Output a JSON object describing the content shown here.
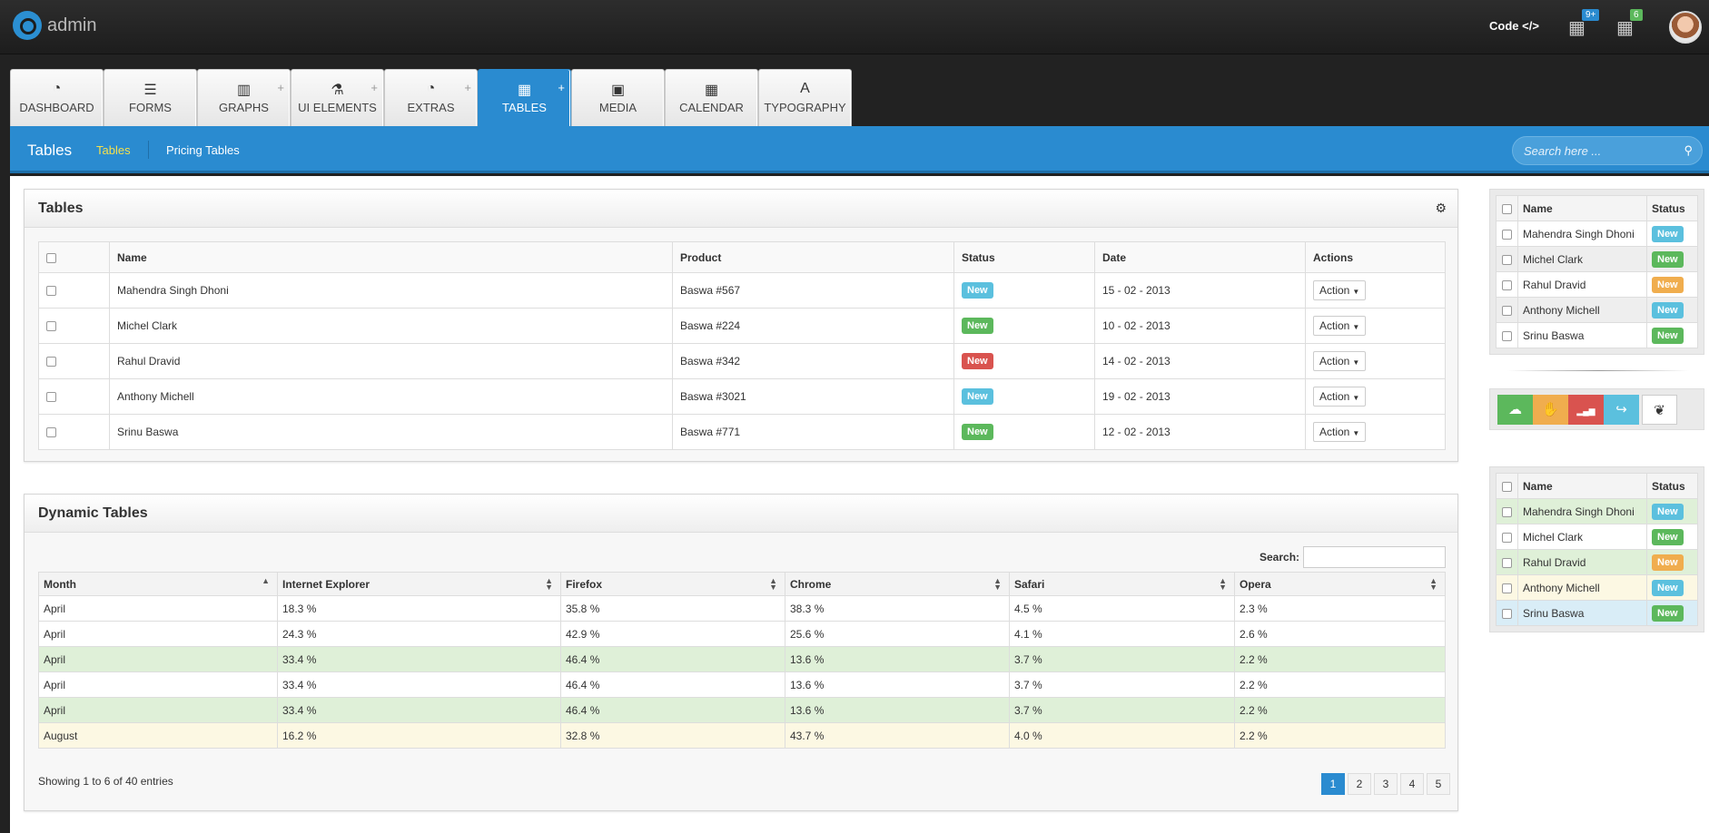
{
  "app": {
    "logo_text": "admin"
  },
  "topbar": {
    "code_label": "Code </>",
    "film_badge": "9+",
    "calendar_badge": "6"
  },
  "nav": {
    "tabs": [
      {
        "label": "DASHBOARD",
        "icon": "dashboard-icon",
        "glyph": "◔",
        "plus": false,
        "active": false
      },
      {
        "label": "FORMS",
        "icon": "list-icon",
        "glyph": "☰",
        "plus": false,
        "active": false
      },
      {
        "label": "GRAPHS",
        "icon": "bar-chart-icon",
        "glyph": "▥",
        "plus": true,
        "active": false
      },
      {
        "label": "UI ELEMENTS",
        "icon": "flask-icon",
        "glyph": "⚗",
        "plus": true,
        "active": false
      },
      {
        "label": "EXTRAS",
        "icon": "dashboard-icon",
        "glyph": "◔",
        "plus": true,
        "active": false
      },
      {
        "label": "TABLES",
        "icon": "table-icon",
        "glyph": "▦",
        "plus": true,
        "active": true
      },
      {
        "label": "MEDIA",
        "icon": "image-icon",
        "glyph": "▣",
        "plus": false,
        "active": false
      },
      {
        "label": "CALENDAR",
        "icon": "calendar-icon",
        "glyph": "▦",
        "plus": false,
        "active": false
      },
      {
        "label": "TYPOGRAPHY",
        "icon": "font-icon",
        "glyph": "A",
        "plus": false,
        "active": false
      }
    ]
  },
  "subnav": {
    "title": "Tables",
    "link1": "Tables",
    "link2": "Pricing Tables",
    "search_placeholder": "Search here ..."
  },
  "tables_panel": {
    "title": "Tables",
    "headers": [
      "Name",
      "Product",
      "Status",
      "Date",
      "Actions"
    ],
    "action_label": "Action",
    "rows": [
      {
        "name": "Mahendra Singh Dhoni",
        "product": "Baswa #567",
        "status": "New",
        "status_type": "info",
        "date": "15 - 02 - 2013"
      },
      {
        "name": "Michel Clark",
        "product": "Baswa #224",
        "status": "New",
        "status_type": "success",
        "date": "10 - 02 - 2013"
      },
      {
        "name": "Rahul Dravid",
        "product": "Baswa #342",
        "status": "New",
        "status_type": "danger",
        "date": "14 - 02 - 2013"
      },
      {
        "name": "Anthony Michell",
        "product": "Baswa #3021",
        "status": "New",
        "status_type": "info",
        "date": "19 - 02 - 2013"
      },
      {
        "name": "Srinu Baswa",
        "product": "Baswa #771",
        "status": "New",
        "status_type": "success",
        "date": "12 - 02 - 2013"
      }
    ]
  },
  "dynamic_panel": {
    "title": "Dynamic Tables",
    "search_label": "Search:",
    "headers": [
      "Month",
      "Internet Explorer",
      "Firefox",
      "Chrome",
      "Safari",
      "Opera"
    ],
    "rows": [
      {
        "style": "plain",
        "cells": [
          "April",
          "18.3 %",
          "35.8 %",
          "38.3 %",
          "4.5 %",
          "2.3 %"
        ]
      },
      {
        "style": "plain",
        "cells": [
          "April",
          "24.3 %",
          "42.9 %",
          "25.6 %",
          "4.1 %",
          "2.6 %"
        ]
      },
      {
        "style": "green",
        "cells": [
          "April",
          "33.4 %",
          "46.4 %",
          "13.6 %",
          "3.7 %",
          "2.2 %"
        ]
      },
      {
        "style": "plain",
        "cells": [
          "April",
          "33.4 %",
          "46.4 %",
          "13.6 %",
          "3.7 %",
          "2.2 %"
        ]
      },
      {
        "style": "green",
        "cells": [
          "April",
          "33.4 %",
          "46.4 %",
          "13.6 %",
          "3.7 %",
          "2.2 %"
        ]
      },
      {
        "style": "yellow",
        "cells": [
          "August",
          "16.2 %",
          "32.8 %",
          "43.7 %",
          "4.0 %",
          "2.2 %"
        ]
      }
    ],
    "info": "Showing 1 to 6 of 40 entries",
    "pages": [
      "1",
      "2",
      "3",
      "4",
      "5"
    ],
    "current_page": "1"
  },
  "side_table_1": {
    "headers": [
      "Name",
      "Status"
    ],
    "rows": [
      {
        "name": "Mahendra Singh Dhoni",
        "status": "New",
        "status_type": "info",
        "style": "plain"
      },
      {
        "name": "Michel Clark",
        "status": "New",
        "status_type": "success",
        "style": "gray"
      },
      {
        "name": "Rahul Dravid",
        "status": "New",
        "status_type": "warning",
        "style": "plain"
      },
      {
        "name": "Anthony Michell",
        "status": "New",
        "status_type": "info",
        "style": "gray"
      },
      {
        "name": "Srinu Baswa",
        "status": "New",
        "status_type": "success",
        "style": "plain"
      }
    ]
  },
  "button_group": [
    {
      "icon": "cloud-upload-icon",
      "glyph": "☁",
      "color": "#5cb85c"
    },
    {
      "icon": "thumbs-down-icon",
      "glyph": "✋",
      "color": "#f0ad4e"
    },
    {
      "icon": "signal-icon",
      "glyph": "▂▄▆",
      "color": "#d9534f"
    },
    {
      "icon": "share-icon",
      "glyph": "↪",
      "color": "#5bc0de"
    },
    {
      "icon": "leaf-icon",
      "glyph": "❦",
      "color": "#ffffff"
    }
  ],
  "side_table_2": {
    "headers": [
      "Name",
      "Status"
    ],
    "rows": [
      {
        "name": "Mahendra Singh Dhoni",
        "status": "New",
        "status_type": "info",
        "style": "rgreen"
      },
      {
        "name": "Michel Clark",
        "status": "New",
        "status_type": "success",
        "style": "plain"
      },
      {
        "name": "Rahul Dravid",
        "status": "New",
        "status_type": "warning",
        "style": "rgreen"
      },
      {
        "name": "Anthony Michell",
        "status": "New",
        "status_type": "info",
        "style": "ryellow"
      },
      {
        "name": "Srinu Baswa",
        "status": "New",
        "status_type": "success",
        "style": "rblue"
      }
    ]
  },
  "colors": {
    "primary": "#2a8bd0",
    "info": "#5bc0de",
    "success": "#5cb85c",
    "danger": "#d9534f",
    "warning": "#f0ad4e"
  }
}
